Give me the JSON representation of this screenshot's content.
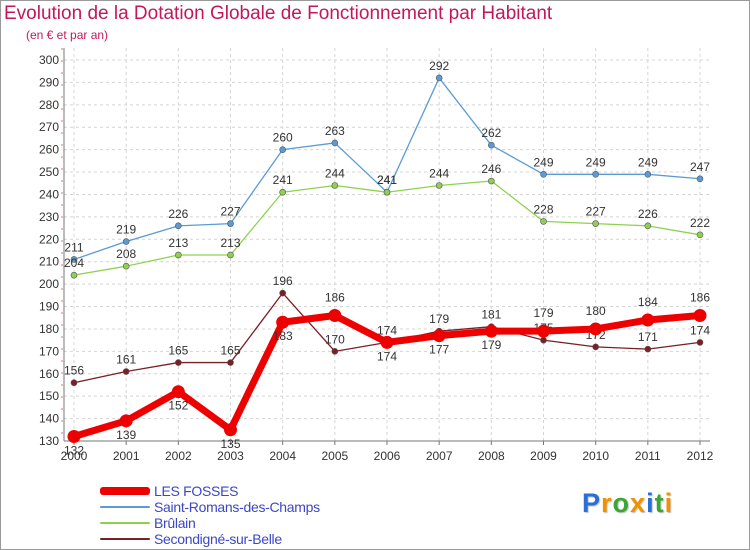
{
  "chart_data": {
    "type": "line",
    "title": "Evolution de la Dotation Globale de Fonctionnement par Habitant",
    "subtitle": "(en € et par an)",
    "xlabel": "",
    "ylabel": "",
    "ylim": [
      130,
      300
    ],
    "yticks": [
      130,
      140,
      150,
      160,
      170,
      180,
      190,
      200,
      210,
      220,
      230,
      240,
      250,
      260,
      270,
      280,
      290,
      300
    ],
    "categories": [
      "2000",
      "2001",
      "2002",
      "2003",
      "2004",
      "2005",
      "2006",
      "2007",
      "2008",
      "2009",
      "2010",
      "2011",
      "2012"
    ],
    "grid": true,
    "legend_position": "bottom-left",
    "series": [
      {
        "name": "Saint-Romans-des-Champs",
        "color": "#5b9bd5",
        "values": [
          211,
          219,
          226,
          227,
          260,
          263,
          241,
          292,
          262,
          249,
          249,
          249,
          247
        ]
      },
      {
        "name": "Brûlain",
        "color": "#8fd14f",
        "values": [
          204,
          208,
          213,
          213,
          241,
          244,
          241,
          244,
          246,
          228,
          227,
          226,
          222
        ]
      },
      {
        "name": "Secondigné-sur-Belle",
        "color": "#7a1f24",
        "values": [
          156,
          161,
          165,
          165,
          196,
          170,
          174,
          179,
          181,
          175,
          172,
          171,
          174
        ]
      },
      {
        "name": "LES FOSSES",
        "color": "#ee0000",
        "values": [
          132,
          139,
          152,
          135,
          183,
          186,
          174,
          177,
          179,
          179,
          180,
          184,
          186
        ]
      }
    ],
    "legend": [
      {
        "name": "LES FOSSES",
        "color": "#ee0000",
        "style": "thick"
      },
      {
        "name": "Saint-Romans-des-Champs",
        "color": "#5b9bd5",
        "style": "thin"
      },
      {
        "name": "Brûlain",
        "color": "#8fd14f",
        "style": "thin"
      },
      {
        "name": "Secondigné-sur-Belle",
        "color": "#7a1f24",
        "style": "thin"
      }
    ]
  },
  "logo": {
    "letters": [
      "P",
      "r",
      "o",
      "x",
      "i",
      "t",
      "i"
    ],
    "colors": [
      "#2a6fd6",
      "#f29100",
      "#3aa635",
      "#f29100",
      "#2a6fd6",
      "#3aa635",
      "#f29100"
    ]
  }
}
